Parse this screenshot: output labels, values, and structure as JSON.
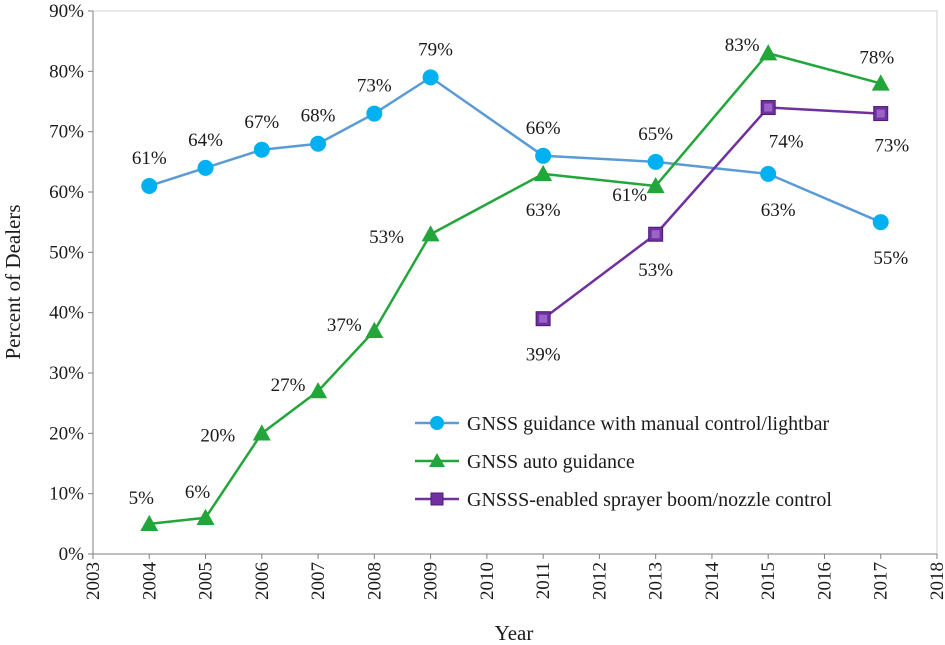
{
  "chart_data": {
    "type": "line",
    "title": "",
    "xlabel": "Year",
    "ylabel": "Percent of Dealers",
    "xlim": [
      2003,
      2018
    ],
    "ylim": [
      0,
      90
    ],
    "x_ticks": [
      "2003",
      "2004",
      "2005",
      "2006",
      "2007",
      "2008",
      "2009",
      "2010",
      "2011",
      "2012",
      "2013",
      "2014",
      "2015",
      "2016",
      "2017",
      "2018"
    ],
    "y_ticks": [
      "0%",
      "10%",
      "20%",
      "30%",
      "40%",
      "50%",
      "60%",
      "70%",
      "80%",
      "90%"
    ],
    "legend_position": "bottom-right",
    "series": [
      {
        "name": "GNSS guidance with manual control/lightbar",
        "color": "#00B0F0",
        "line_color": "#5B9BD5",
        "marker": "circle",
        "x": [
          2004,
          2005,
          2006,
          2007,
          2008,
          2009,
          2011,
          2013,
          2015,
          2017
        ],
        "values": [
          61,
          64,
          67,
          68,
          73,
          79,
          66,
          65,
          63,
          55
        ],
        "labels": [
          "61%",
          "64%",
          "67%",
          "68%",
          "73%",
          "79%",
          "66%",
          "65%",
          "63%",
          "55%"
        ]
      },
      {
        "name": "GNSS auto guidance",
        "color": "#22A63A",
        "line_color": "#22A63A",
        "marker": "triangle",
        "x": [
          2004,
          2005,
          2006,
          2007,
          2008,
          2009,
          2011,
          2013,
          2015,
          2017
        ],
        "values": [
          5,
          6,
          20,
          27,
          37,
          53,
          63,
          61,
          83,
          78
        ],
        "labels": [
          "5%",
          "6%",
          "20%",
          "27%",
          "37%",
          "53%",
          "63%",
          "61%",
          "83%",
          "78%"
        ]
      },
      {
        "name": "GNSSS-enabled sprayer boom/nozzle control",
        "color": "#7030A0",
        "line_color": "#7030A0",
        "marker": "square",
        "x": [
          2011,
          2013,
          2015,
          2017
        ],
        "values": [
          39,
          53,
          74,
          73
        ],
        "labels": [
          "39%",
          "53%",
          "74%",
          "73%"
        ]
      }
    ]
  }
}
